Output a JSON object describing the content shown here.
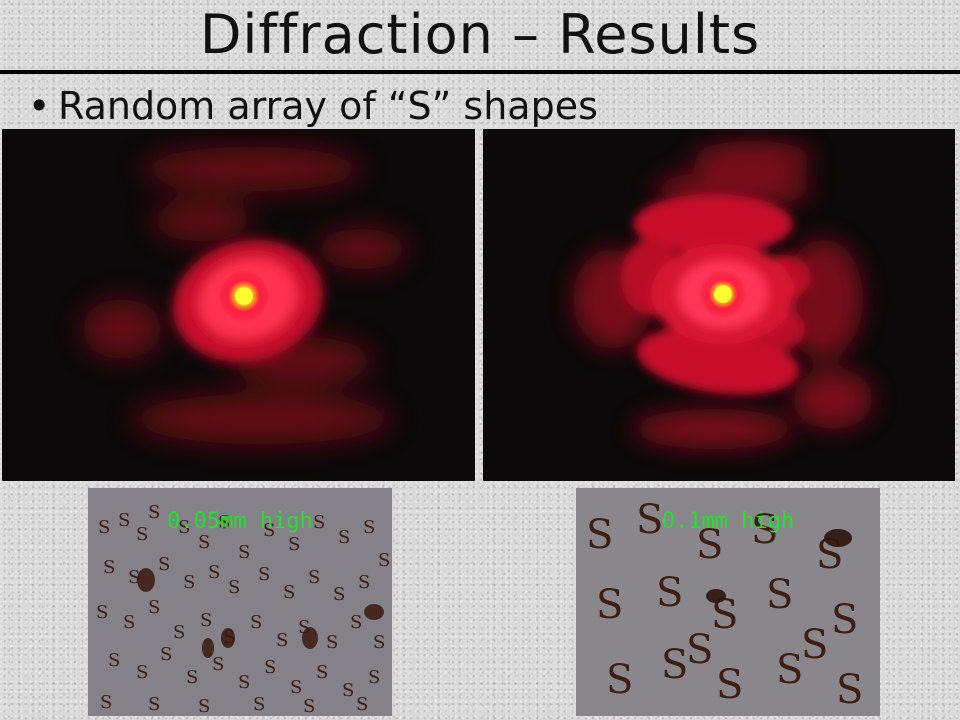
{
  "slide": {
    "title": "Diffraction – Results",
    "bullet_marker": "•",
    "bullet_text": "Random array of “S” shapes"
  },
  "images": {
    "pattern_left": {
      "description_icon": "diffraction-pattern-image"
    },
    "pattern_right": {
      "description_icon": "diffraction-pattern-image"
    },
    "sample_left": {
      "caption": "0.05mm high"
    },
    "sample_right": {
      "caption": "0.1mm high"
    }
  },
  "colors": {
    "caption_green": "#22e22a",
    "laser_red": "#e0102a",
    "laser_core": "#ffff20",
    "background_gray": "#d9d9d9"
  }
}
